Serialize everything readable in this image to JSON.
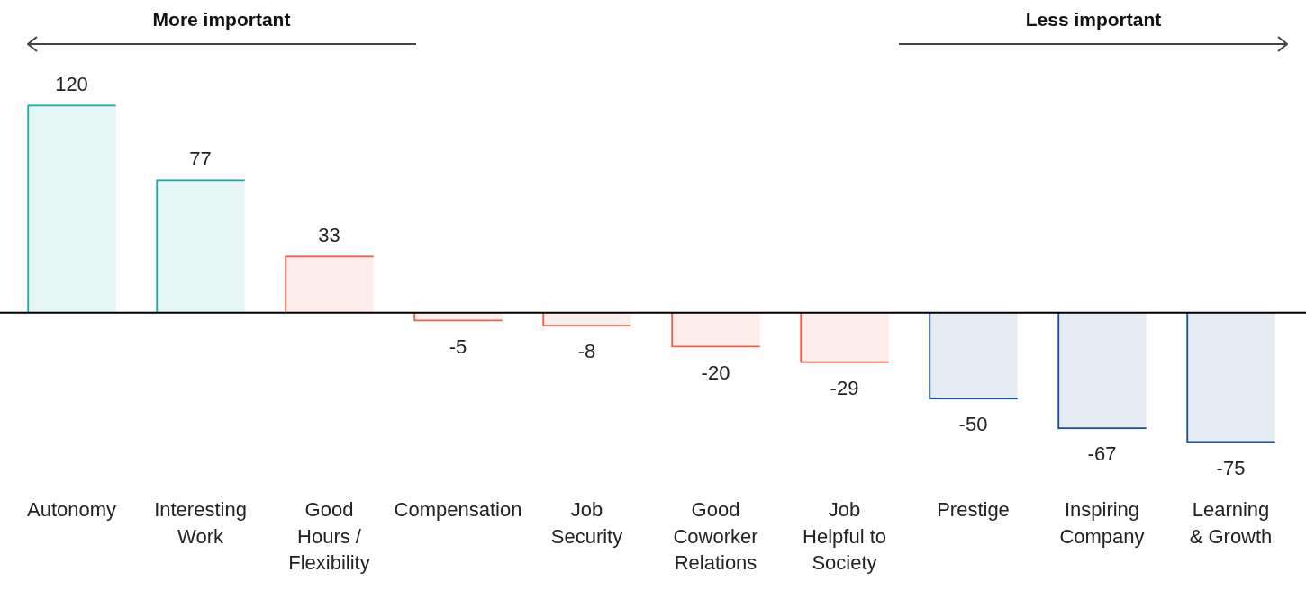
{
  "chart_data": {
    "type": "bar",
    "categories": [
      "Autonomy",
      "Interesting Work",
      "Good Hours / Flexibility",
      "Compensation",
      "Job Security",
      "Good Coworker Relations",
      "Job Helpful to Society",
      "Prestige",
      "Inspiring Company",
      "Learning & Growth"
    ],
    "values": [
      120,
      77,
      33,
      -5,
      -8,
      -20,
      -29,
      -50,
      -67,
      -75
    ],
    "colors": [
      "#1aae9f",
      "#1aae9f",
      "#e8604c",
      "#e8604c",
      "#e8604c",
      "#e8604c",
      "#e8604c",
      "#174f9e",
      "#174f9e",
      "#174f9e"
    ],
    "data_labels": true,
    "grid": false,
    "legend": false,
    "annotations": [
      "More important",
      "Less important"
    ]
  }
}
